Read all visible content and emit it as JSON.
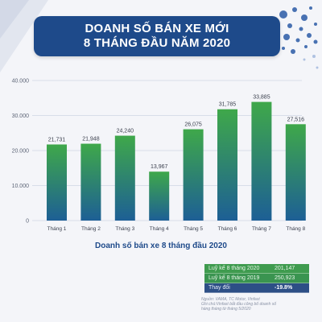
{
  "header": {
    "title_line1": "DOANH SỐ BÁN XE MỚI",
    "title_line2": "8 THÁNG ĐẦU NĂM 2020"
  },
  "chart_data": {
    "type": "bar",
    "title": "Doanh số bán xe 8 tháng đầu 2020",
    "categories": [
      "Tháng 1",
      "Tháng 2",
      "Tháng 3",
      "Tháng 4",
      "Tháng 5",
      "Tháng 6",
      "Tháng 7",
      "Tháng 8"
    ],
    "values": [
      21731,
      21948,
      24240,
      13967,
      26075,
      31785,
      33885,
      27516
    ],
    "value_labels": [
      "21,731",
      "21,948",
      "24,240",
      "13,967",
      "26,075",
      "31,785",
      "33,885",
      "27,516"
    ],
    "ylim": [
      0,
      40000
    ],
    "yticks": [
      0,
      10000,
      20000,
      30000,
      40000
    ],
    "ytick_labels": [
      "0",
      "10.000",
      "20.000",
      "30.000",
      "40.000"
    ],
    "grid": true,
    "colors": {
      "bar_top": "#3fa84a",
      "bar_bottom": "#1d5f95",
      "grid": "#cfd5e3",
      "axis_text": "#5d6577",
      "label_text": "#3a3f4d"
    }
  },
  "summary": {
    "rows": [
      {
        "label": "Luỹ kế 8 tháng 2020",
        "value": "201,147"
      },
      {
        "label": "Luỹ kế 8 tháng 2019",
        "value": "250,923"
      },
      {
        "label": "Thay đổi",
        "value": "-19.8%"
      }
    ]
  },
  "source": {
    "line1": "Nguồn: VAMA, TC Motor, Vinfast",
    "line2": "Ghi chú:Vinfast bắt đầu công bố doanh số",
    "line3": "hàng tháng từ tháng 5/2020"
  }
}
